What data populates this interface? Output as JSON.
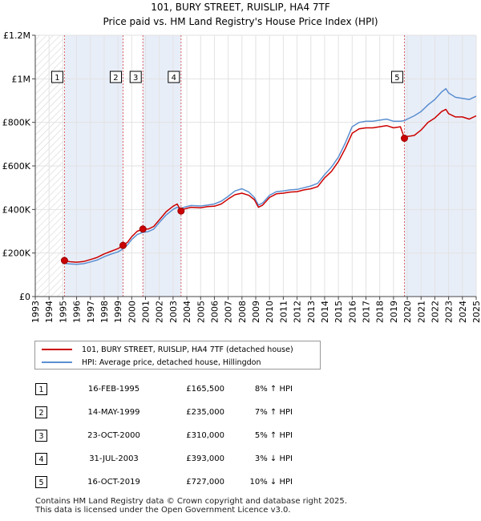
{
  "chart_data": {
    "type": "line",
    "title": "101, BURY STREET, RUISLIP, HA4 7TF",
    "subtitle": "Price paid vs. HM Land Registry's House Price Index (HPI)",
    "x_ticks": [
      "1993",
      "1994",
      "1995",
      "1996",
      "1997",
      "1998",
      "1999",
      "2000",
      "2001",
      "2002",
      "2003",
      "2004",
      "2005",
      "2006",
      "2007",
      "2008",
      "2009",
      "2010",
      "2011",
      "2012",
      "2013",
      "2014",
      "2015",
      "2016",
      "2017",
      "2018",
      "2019",
      "2020",
      "2021",
      "2022",
      "2023",
      "2024",
      "2025"
    ],
    "y_ticks": [
      "£0",
      "£200K",
      "£400K",
      "£600K",
      "£800K",
      "£1M",
      "£1.2M"
    ],
    "xlim": [
      1993,
      2025
    ],
    "ylim": [
      0,
      1200000
    ],
    "colors": {
      "property": "#cc0000",
      "hpi": "#5b8fd1",
      "sale_band": "#e8eef8"
    },
    "series": [
      {
        "name": "101, BURY STREET, RUISLIP, HA4 7TF (detached house)",
        "key": "property",
        "points": [
          [
            1995.12,
            165500
          ],
          [
            1995.5,
            160000
          ],
          [
            1996.0,
            158000
          ],
          [
            1996.5,
            161000
          ],
          [
            1997.0,
            170000
          ],
          [
            1997.5,
            180000
          ],
          [
            1998.0,
            196000
          ],
          [
            1998.5,
            208000
          ],
          [
            1999.0,
            220000
          ],
          [
            1999.37,
            235000
          ],
          [
            1999.7,
            250000
          ],
          [
            2000.0,
            275000
          ],
          [
            2000.4,
            300000
          ],
          [
            2000.81,
            310000
          ],
          [
            2001.2,
            310000
          ],
          [
            2001.6,
            322000
          ],
          [
            2002.0,
            352000
          ],
          [
            2002.5,
            390000
          ],
          [
            2003.0,
            415000
          ],
          [
            2003.3,
            425000
          ],
          [
            2003.58,
            393000
          ],
          [
            2003.8,
            402000
          ],
          [
            2004.3,
            410000
          ],
          [
            2005.0,
            408000
          ],
          [
            2005.5,
            413000
          ],
          [
            2006.0,
            415000
          ],
          [
            2006.5,
            425000
          ],
          [
            2007.0,
            448000
          ],
          [
            2007.5,
            468000
          ],
          [
            2008.0,
            475000
          ],
          [
            2008.5,
            465000
          ],
          [
            2008.9,
            445000
          ],
          [
            2009.2,
            410000
          ],
          [
            2009.5,
            420000
          ],
          [
            2010.0,
            455000
          ],
          [
            2010.5,
            472000
          ],
          [
            2011.0,
            475000
          ],
          [
            2011.5,
            480000
          ],
          [
            2012.0,
            482000
          ],
          [
            2012.5,
            490000
          ],
          [
            2013.0,
            495000
          ],
          [
            2013.5,
            505000
          ],
          [
            2014.0,
            545000
          ],
          [
            2014.5,
            575000
          ],
          [
            2015.0,
            620000
          ],
          [
            2015.5,
            680000
          ],
          [
            2016.0,
            750000
          ],
          [
            2016.5,
            770000
          ],
          [
            2017.0,
            775000
          ],
          [
            2017.5,
            775000
          ],
          [
            2018.0,
            780000
          ],
          [
            2018.5,
            785000
          ],
          [
            2019.0,
            775000
          ],
          [
            2019.5,
            780000
          ],
          [
            2019.79,
            727000
          ],
          [
            2020.0,
            735000
          ],
          [
            2020.5,
            740000
          ],
          [
            2021.0,
            765000
          ],
          [
            2021.5,
            800000
          ],
          [
            2022.0,
            820000
          ],
          [
            2022.5,
            850000
          ],
          [
            2022.8,
            860000
          ],
          [
            2023.0,
            840000
          ],
          [
            2023.5,
            825000
          ],
          [
            2024.0,
            825000
          ],
          [
            2024.5,
            815000
          ],
          [
            2025.0,
            830000
          ]
        ]
      },
      {
        "name": "HPI: Average price, detached house, Hillingdon",
        "key": "hpi",
        "points": [
          [
            1995.0,
            153000
          ],
          [
            1995.5,
            150000
          ],
          [
            1996.0,
            148000
          ],
          [
            1996.5,
            151000
          ],
          [
            1997.0,
            159000
          ],
          [
            1997.5,
            168000
          ],
          [
            1998.0,
            183000
          ],
          [
            1998.5,
            195000
          ],
          [
            1999.0,
            205000
          ],
          [
            1999.37,
            219000
          ],
          [
            1999.7,
            238000
          ],
          [
            2000.0,
            262000
          ],
          [
            2000.4,
            285000
          ],
          [
            2000.81,
            295000
          ],
          [
            2001.2,
            298000
          ],
          [
            2001.6,
            310000
          ],
          [
            2002.0,
            340000
          ],
          [
            2002.5,
            375000
          ],
          [
            2003.0,
            400000
          ],
          [
            2003.3,
            410000
          ],
          [
            2003.58,
            405000
          ],
          [
            2003.8,
            410000
          ],
          [
            2004.3,
            418000
          ],
          [
            2005.0,
            416000
          ],
          [
            2005.5,
            420000
          ],
          [
            2006.0,
            425000
          ],
          [
            2006.5,
            438000
          ],
          [
            2007.0,
            460000
          ],
          [
            2007.5,
            485000
          ],
          [
            2008.0,
            495000
          ],
          [
            2008.5,
            480000
          ],
          [
            2008.9,
            455000
          ],
          [
            2009.2,
            420000
          ],
          [
            2009.5,
            430000
          ],
          [
            2010.0,
            465000
          ],
          [
            2010.5,
            482000
          ],
          [
            2011.0,
            485000
          ],
          [
            2011.5,
            490000
          ],
          [
            2012.0,
            492000
          ],
          [
            2012.5,
            500000
          ],
          [
            2013.0,
            508000
          ],
          [
            2013.5,
            520000
          ],
          [
            2014.0,
            560000
          ],
          [
            2014.5,
            595000
          ],
          [
            2015.0,
            640000
          ],
          [
            2015.5,
            705000
          ],
          [
            2016.0,
            780000
          ],
          [
            2016.5,
            800000
          ],
          [
            2017.0,
            805000
          ],
          [
            2017.5,
            805000
          ],
          [
            2018.0,
            810000
          ],
          [
            2018.5,
            815000
          ],
          [
            2019.0,
            805000
          ],
          [
            2019.5,
            805000
          ],
          [
            2019.79,
            808000
          ],
          [
            2020.0,
            815000
          ],
          [
            2020.5,
            830000
          ],
          [
            2021.0,
            850000
          ],
          [
            2021.5,
            880000
          ],
          [
            2022.0,
            905000
          ],
          [
            2022.5,
            940000
          ],
          [
            2022.8,
            955000
          ],
          [
            2023.0,
            935000
          ],
          [
            2023.5,
            915000
          ],
          [
            2024.0,
            910000
          ],
          [
            2024.5,
            905000
          ],
          [
            2025.0,
            920000
          ]
        ]
      }
    ],
    "sales": [
      {
        "num": "1",
        "date": "16-FEB-1995",
        "price": "£165,500",
        "hpi": "8% ↑ HPI",
        "x": 1995.12,
        "y": 165500
      },
      {
        "num": "2",
        "date": "14-MAY-1999",
        "price": "£235,000",
        "hpi": "7% ↑ HPI",
        "x": 1999.37,
        "y": 235000
      },
      {
        "num": "3",
        "date": "23-OCT-2000",
        "price": "£310,000",
        "hpi": "5% ↑ HPI",
        "x": 2000.81,
        "y": 310000
      },
      {
        "num": "4",
        "date": "31-JUL-2003",
        "price": "£393,000",
        "hpi": "3% ↓ HPI",
        "x": 2003.58,
        "y": 393000
      },
      {
        "num": "5",
        "date": "16-OCT-2019",
        "price": "£727,000",
        "hpi": "10% ↓ HPI",
        "x": 2019.79,
        "y": 727000
      }
    ],
    "legend": [
      {
        "label": "101, BURY STREET, RUISLIP, HA4 7TF (detached house)",
        "key": "property"
      },
      {
        "label": "HPI: Average price, detached house, Hillingdon",
        "key": "hpi"
      }
    ]
  },
  "footer": {
    "line1": "Contains HM Land Registry data © Crown copyright and database right 2025.",
    "line2": "This data is licensed under the Open Government Licence v3.0."
  }
}
